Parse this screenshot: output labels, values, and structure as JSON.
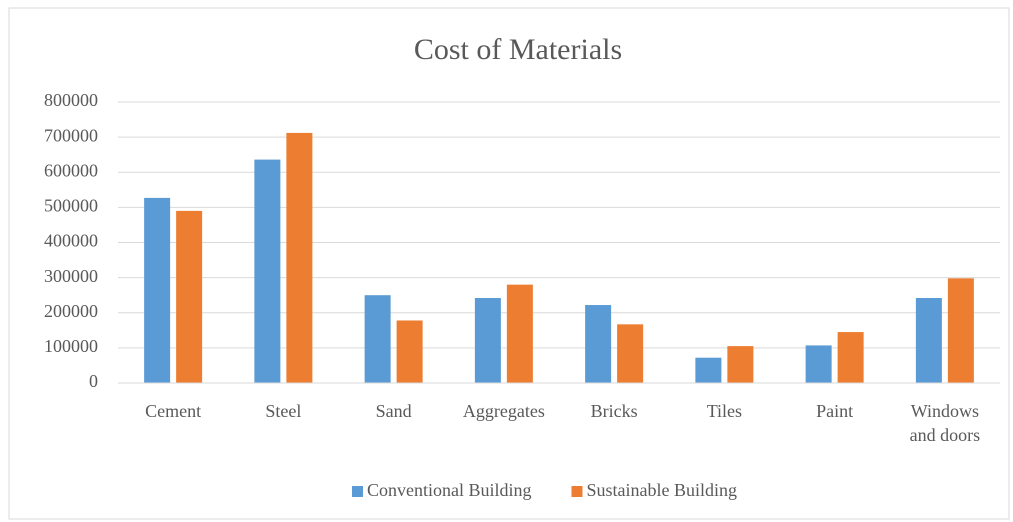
{
  "chart_data": {
    "type": "bar",
    "title": "Cost of Materials",
    "categories": [
      "Cement",
      "Steel",
      "Sand",
      "Aggregates",
      "Bricks",
      "Tiles",
      "Paint",
      "Windows and doors"
    ],
    "series": [
      {
        "name": "Conventional Building",
        "color": "#5b9bd5",
        "values": [
          527000,
          636000,
          250000,
          242000,
          222000,
          72000,
          107000,
          242000
        ]
      },
      {
        "name": "Sustainable Building",
        "color": "#ed7d31",
        "values": [
          490000,
          712000,
          178000,
          280000,
          167000,
          105000,
          145000,
          298000
        ]
      }
    ],
    "ylim": [
      0,
      800000
    ],
    "yticks": [
      0,
      100000,
      200000,
      300000,
      400000,
      500000,
      600000,
      700000,
      800000
    ],
    "grid": true,
    "legend": "bottom"
  }
}
